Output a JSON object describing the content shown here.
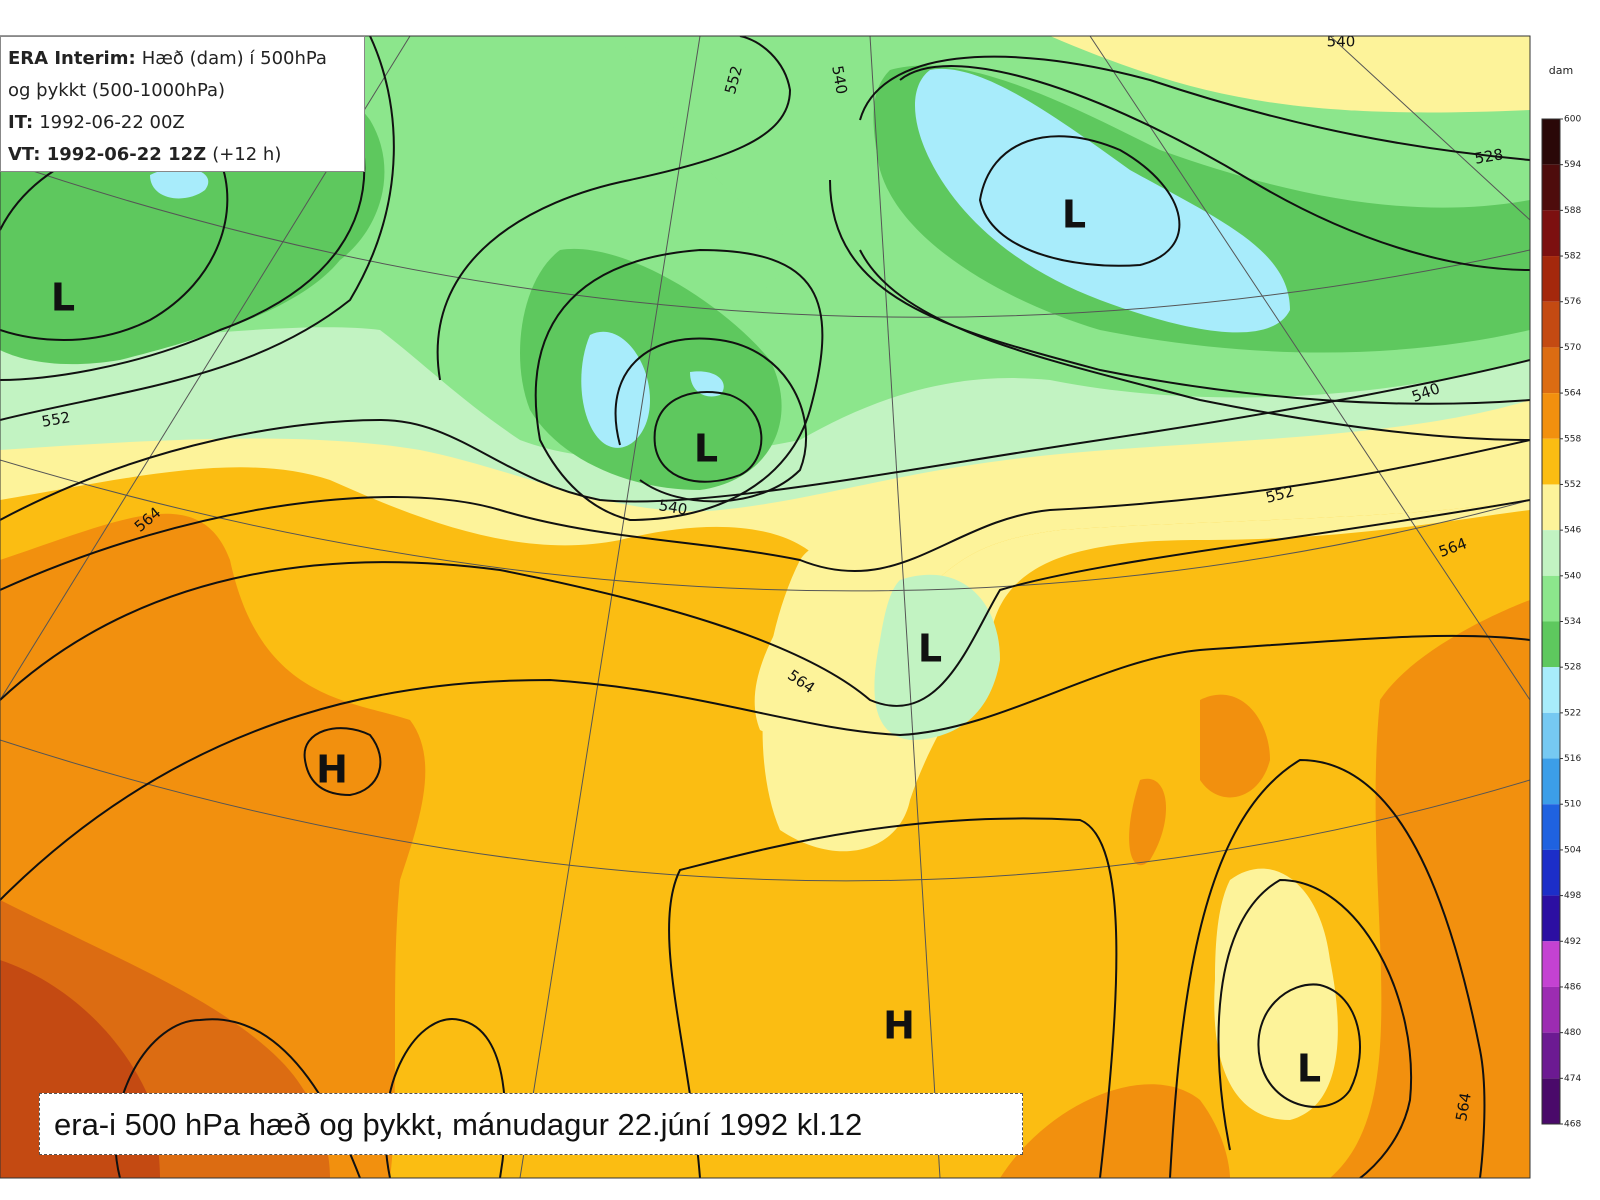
{
  "header": {
    "lines": [
      {
        "bold": "ERA Interim:",
        "text": "Hæð (dam) í 500hPa"
      },
      {
        "text": "og þykkt (500-1000hPa)"
      },
      {
        "bold": "IT:",
        "text": "1992-06-22 00Z"
      },
      {
        "bold": "VT: 1992-06-22 12Z",
        "text": "(+12 h)"
      }
    ]
  },
  "centers": [
    {
      "label": "L"
    },
    {
      "label": "L"
    },
    {
      "label": "L"
    },
    {
      "label": "L"
    },
    {
      "label": "H"
    },
    {
      "label": "H"
    },
    {
      "label": "L"
    }
  ],
  "contour_labels": [
    540,
    552,
    540,
    528,
    552,
    540,
    540,
    552,
    564,
    564,
    564,
    564
  ],
  "colorbar": {
    "unit": "dam",
    "levels": [
      600,
      594,
      588,
      582,
      576,
      570,
      564,
      558,
      552,
      546,
      540,
      534,
      528,
      522,
      516,
      510,
      504,
      498,
      492,
      486,
      480,
      474,
      468
    ],
    "colors": [
      "#2a0808",
      "#4e0c0c",
      "#7c1010",
      "#a4280c",
      "#c44a12",
      "#dc6c12",
      "#f2900e",
      "#fbbd12",
      "#fdf39a",
      "#c2f3c2",
      "#8ce68c",
      "#5ec85e",
      "#a8ecfb",
      "#76c9f2",
      "#3c9ee8",
      "#1f62e0",
      "#1c2ec8",
      "#2c0fa2",
      "#c442d2",
      "#9c2cb2",
      "#6c1a92",
      "#4a0a6a"
    ]
  },
  "caption": "era-i 500 hPa hæð og þykkt, mánudagur 22.júní 1992 kl.12"
}
